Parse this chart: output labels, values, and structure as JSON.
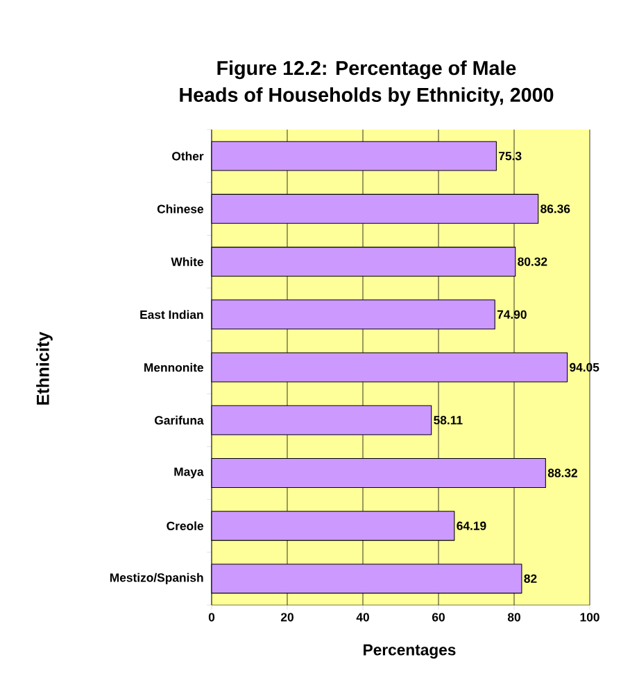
{
  "chart_data": {
    "type": "bar",
    "orientation": "horizontal",
    "title": "Figure 12.2: Percentage of Male\nHeads of Households by Ethnicity, 2000",
    "xlabel": "Percentages",
    "ylabel": "Ethnicity",
    "categories": [
      "Other",
      "Chinese",
      "White",
      "East Indian",
      "Mennonite",
      "Garifuna",
      "Maya",
      "Creole",
      "Mestizo/Spanish"
    ],
    "values": [
      75.3,
      86.36,
      80.32,
      74.9,
      94.05,
      58.11,
      88.32,
      64.19,
      82
    ],
    "value_labels": [
      "75.3",
      "86.36",
      "80.32",
      "74.90",
      "94.05",
      "58.11",
      "88.32",
      "64.19",
      "82"
    ],
    "color": "#cc99ff",
    "xlim": [
      0,
      100
    ],
    "xticks": [
      0,
      20,
      40,
      60,
      80,
      100
    ],
    "grid": "x"
  }
}
